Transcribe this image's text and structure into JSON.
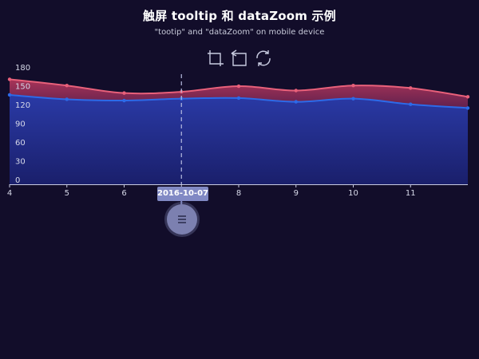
{
  "header": {
    "title": "触屏 tooltip 和 dataZoom 示例",
    "subtitle": "\"tootip\" and \"dataZoom\" on mobile device"
  },
  "toolbox": {
    "icons": [
      "zoom-area-icon",
      "zoom-back-icon",
      "restore-icon"
    ]
  },
  "axis_pointer": {
    "label": "2016-10-07"
  },
  "colors": {
    "background": "#120d2a",
    "series_red": "#e8607a",
    "series_blue": "#2d6ae8",
    "axis_text": "#d6d8e8",
    "pointer": "#8189c4"
  },
  "chart_data": {
    "type": "area",
    "title": "触屏 tooltip 和 dataZoom 示例",
    "subtitle": "\"tootip\" and \"dataZoom\" on mobile device",
    "x": [
      4,
      5,
      6,
      7,
      8,
      9,
      10,
      11,
      12
    ],
    "xtick_labels": [
      "4",
      "5",
      "6",
      "",
      "8",
      "9",
      "10",
      "11"
    ],
    "xlim": [
      4,
      12
    ],
    "ylim": [
      0,
      180
    ],
    "yticks": [
      0,
      30,
      60,
      90,
      120,
      150,
      180
    ],
    "grid": false,
    "axis_pointer_x": 7,
    "series": [
      {
        "values": [
          168,
          158,
          146,
          148,
          157,
          150,
          158,
          154,
          140
        ],
        "color": "#e8607a"
      },
      {
        "values": [
          143,
          136,
          134,
          137,
          138,
          132,
          137,
          128,
          122
        ],
        "color": "#2d6ae8"
      }
    ]
  }
}
